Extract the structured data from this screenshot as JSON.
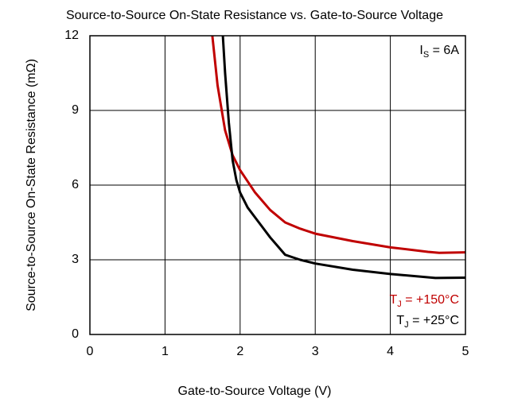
{
  "chart_data": {
    "type": "line",
    "title": "Source-to-Source On-State Resistance vs. Gate-to-Source Voltage",
    "x_label": "Gate-to-Source Voltage (V)",
    "y_label": "Source-to-Source On-State Resistance (mΩ)",
    "annotation": "IS = 6A",
    "xlim": [
      0,
      5
    ],
    "xticks": [
      0,
      1,
      2,
      3,
      4,
      5
    ],
    "ylim": [
      0,
      12
    ],
    "yticks": [
      0,
      3,
      6,
      9,
      12
    ],
    "grid": true,
    "series": [
      {
        "name": "TJ = +150°C",
        "color": "#c00000",
        "x": [
          1.63,
          1.7,
          1.8,
          1.9,
          2.0,
          2.2,
          2.4,
          2.6,
          2.8,
          3.0,
          3.5,
          4.0,
          4.5,
          4.65,
          5.0
        ],
        "values": [
          12,
          10,
          8.2,
          7.2,
          6.6,
          5.7,
          5.0,
          4.5,
          4.25,
          4.05,
          3.75,
          3.5,
          3.32,
          3.28,
          3.3
        ]
      },
      {
        "name": "TJ = +25°C",
        "color": "#000000",
        "x": [
          1.77,
          1.8,
          1.85,
          1.9,
          1.95,
          2.0,
          2.1,
          2.2,
          2.3,
          2.4,
          2.5,
          2.6,
          2.7,
          2.8,
          3.0,
          3.5,
          4.0,
          4.6,
          5.0
        ],
        "values": [
          12,
          10.5,
          8.5,
          7.0,
          6.2,
          5.7,
          5.1,
          4.7,
          4.3,
          3.9,
          3.55,
          3.2,
          3.1,
          3.0,
          2.85,
          2.6,
          2.43,
          2.27,
          2.28
        ]
      }
    ]
  }
}
